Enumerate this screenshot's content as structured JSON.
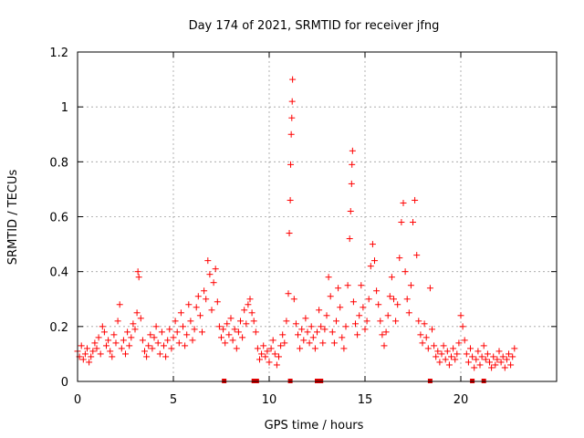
{
  "chart_data": {
    "type": "scatter",
    "title": "Day 174 of 2021, SRMTID for receiver jfng",
    "xlabel": "GPS time / hours",
    "ylabel": "SRMTID / TECUs",
    "xlim": [
      0,
      25
    ],
    "ylim": [
      0,
      1.2
    ],
    "xticks": [
      0,
      5,
      10,
      15,
      20
    ],
    "xtick_labels": [
      "0",
      "5",
      "10",
      "15",
      "20"
    ],
    "yticks": [
      0,
      0.2,
      0.4,
      0.6,
      0.8,
      1.0,
      1.2
    ],
    "ytick_labels": [
      "0",
      "0.2",
      "0.4",
      "0.6",
      "0.8",
      "1",
      "1.2"
    ],
    "grid": true,
    "marker": "+",
    "color": "#ff0000",
    "series": [
      {
        "name": "SRMTID",
        "points": [
          [
            0.0,
            0.11
          ],
          [
            0.1,
            0.09
          ],
          [
            0.2,
            0.13
          ],
          [
            0.3,
            0.08
          ],
          [
            0.4,
            0.1
          ],
          [
            0.5,
            0.12
          ],
          [
            0.6,
            0.07
          ],
          [
            0.7,
            0.09
          ],
          [
            0.8,
            0.11
          ],
          [
            0.9,
            0.14
          ],
          [
            1.0,
            0.12
          ],
          [
            1.1,
            0.16
          ],
          [
            1.2,
            0.1
          ],
          [
            1.3,
            0.2
          ],
          [
            1.4,
            0.18
          ],
          [
            1.5,
            0.13
          ],
          [
            1.6,
            0.15
          ],
          [
            1.7,
            0.11
          ],
          [
            1.8,
            0.09
          ],
          [
            1.9,
            0.17
          ],
          [
            2.0,
            0.14
          ],
          [
            2.1,
            0.22
          ],
          [
            2.2,
            0.28
          ],
          [
            2.3,
            0.12
          ],
          [
            2.4,
            0.15
          ],
          [
            2.5,
            0.1
          ],
          [
            2.6,
            0.18
          ],
          [
            2.7,
            0.13
          ],
          [
            2.8,
            0.16
          ],
          [
            2.9,
            0.21
          ],
          [
            3.0,
            0.19
          ],
          [
            3.1,
            0.25
          ],
          [
            3.15,
            0.4
          ],
          [
            3.2,
            0.38
          ],
          [
            3.3,
            0.23
          ],
          [
            3.4,
            0.15
          ],
          [
            3.5,
            0.11
          ],
          [
            3.6,
            0.09
          ],
          [
            3.7,
            0.13
          ],
          [
            3.8,
            0.17
          ],
          [
            3.9,
            0.12
          ],
          [
            4.0,
            0.16
          ],
          [
            4.1,
            0.2
          ],
          [
            4.2,
            0.14
          ],
          [
            4.3,
            0.1
          ],
          [
            4.4,
            0.18
          ],
          [
            4.5,
            0.13
          ],
          [
            4.6,
            0.09
          ],
          [
            4.7,
            0.15
          ],
          [
            4.8,
            0.19
          ],
          [
            4.9,
            0.12
          ],
          [
            5.0,
            0.16
          ],
          [
            5.1,
            0.22
          ],
          [
            5.2,
            0.18
          ],
          [
            5.3,
            0.14
          ],
          [
            5.4,
            0.25
          ],
          [
            5.5,
            0.2
          ],
          [
            5.6,
            0.13
          ],
          [
            5.7,
            0.17
          ],
          [
            5.8,
            0.28
          ],
          [
            5.9,
            0.22
          ],
          [
            6.0,
            0.15
          ],
          [
            6.1,
            0.19
          ],
          [
            6.2,
            0.27
          ],
          [
            6.3,
            0.31
          ],
          [
            6.4,
            0.24
          ],
          [
            6.5,
            0.18
          ],
          [
            6.6,
            0.33
          ],
          [
            6.7,
            0.3
          ],
          [
            6.8,
            0.44
          ],
          [
            6.9,
            0.39
          ],
          [
            7.0,
            0.26
          ],
          [
            7.1,
            0.36
          ],
          [
            7.2,
            0.41
          ],
          [
            7.3,
            0.29
          ],
          [
            7.4,
            0.2
          ],
          [
            7.5,
            0.16
          ],
          [
            7.6,
            0.19
          ],
          [
            7.7,
            0.14
          ],
          [
            7.8,
            0.21
          ],
          [
            7.9,
            0.17
          ],
          [
            8.0,
            0.23
          ],
          [
            8.1,
            0.15
          ],
          [
            8.2,
            0.19
          ],
          [
            8.3,
            0.12
          ],
          [
            8.4,
            0.18
          ],
          [
            8.5,
            0.22
          ],
          [
            8.6,
            0.16
          ],
          [
            8.7,
            0.26
          ],
          [
            8.8,
            0.21
          ],
          [
            8.9,
            0.28
          ],
          [
            9.0,
            0.3
          ],
          [
            9.1,
            0.25
          ],
          [
            9.2,
            0.22
          ],
          [
            9.3,
            0.18
          ],
          [
            9.4,
            0.12
          ],
          [
            9.5,
            0.08
          ],
          [
            9.6,
            0.1
          ],
          [
            9.7,
            0.13
          ],
          [
            9.8,
            0.09
          ],
          [
            9.9,
            0.11
          ],
          [
            10.0,
            0.07
          ],
          [
            10.1,
            0.12
          ],
          [
            10.2,
            0.15
          ],
          [
            10.3,
            0.1
          ],
          [
            10.4,
            0.06
          ],
          [
            10.5,
            0.09
          ],
          [
            10.6,
            0.13
          ],
          [
            10.7,
            0.17
          ],
          [
            10.8,
            0.14
          ],
          [
            10.9,
            0.22
          ],
          [
            11.0,
            0.32
          ],
          [
            11.05,
            0.54
          ],
          [
            11.1,
            0.66
          ],
          [
            11.12,
            0.79
          ],
          [
            11.15,
            0.9
          ],
          [
            11.18,
            0.96
          ],
          [
            11.2,
            1.02
          ],
          [
            11.22,
            1.1
          ],
          [
            11.3,
            0.3
          ],
          [
            11.4,
            0.21
          ],
          [
            11.5,
            0.17
          ],
          [
            11.6,
            0.12
          ],
          [
            11.7,
            0.19
          ],
          [
            11.8,
            0.15
          ],
          [
            11.9,
            0.23
          ],
          [
            12.0,
            0.18
          ],
          [
            12.1,
            0.14
          ],
          [
            12.2,
            0.2
          ],
          [
            12.3,
            0.16
          ],
          [
            12.4,
            0.12
          ],
          [
            12.5,
            0.18
          ],
          [
            12.6,
            0.26
          ],
          [
            12.7,
            0.2
          ],
          [
            12.8,
            0.14
          ],
          [
            12.9,
            0.19
          ],
          [
            13.0,
            0.24
          ],
          [
            13.1,
            0.38
          ],
          [
            13.2,
            0.31
          ],
          [
            13.3,
            0.18
          ],
          [
            13.4,
            0.14
          ],
          [
            13.5,
            0.22
          ],
          [
            13.6,
            0.34
          ],
          [
            13.7,
            0.27
          ],
          [
            13.8,
            0.16
          ],
          [
            13.9,
            0.12
          ],
          [
            14.0,
            0.2
          ],
          [
            14.1,
            0.35
          ],
          [
            14.2,
            0.52
          ],
          [
            14.25,
            0.62
          ],
          [
            14.3,
            0.72
          ],
          [
            14.32,
            0.79
          ],
          [
            14.35,
            0.84
          ],
          [
            14.4,
            0.29
          ],
          [
            14.5,
            0.21
          ],
          [
            14.6,
            0.17
          ],
          [
            14.7,
            0.24
          ],
          [
            14.8,
            0.35
          ],
          [
            14.9,
            0.27
          ],
          [
            15.0,
            0.19
          ],
          [
            15.1,
            0.22
          ],
          [
            15.2,
            0.3
          ],
          [
            15.3,
            0.42
          ],
          [
            15.4,
            0.5
          ],
          [
            15.5,
            0.44
          ],
          [
            15.6,
            0.33
          ],
          [
            15.7,
            0.28
          ],
          [
            15.8,
            0.22
          ],
          [
            15.9,
            0.17
          ],
          [
            16.0,
            0.13
          ],
          [
            16.1,
            0.18
          ],
          [
            16.2,
            0.24
          ],
          [
            16.3,
            0.31
          ],
          [
            16.4,
            0.38
          ],
          [
            16.5,
            0.3
          ],
          [
            16.6,
            0.22
          ],
          [
            16.7,
            0.28
          ],
          [
            16.8,
            0.45
          ],
          [
            16.9,
            0.58
          ],
          [
            17.0,
            0.65
          ],
          [
            17.1,
            0.4
          ],
          [
            17.2,
            0.3
          ],
          [
            17.3,
            0.25
          ],
          [
            17.4,
            0.35
          ],
          [
            17.5,
            0.58
          ],
          [
            17.6,
            0.66
          ],
          [
            17.7,
            0.46
          ],
          [
            17.8,
            0.22
          ],
          [
            17.9,
            0.17
          ],
          [
            18.0,
            0.14
          ],
          [
            18.1,
            0.21
          ],
          [
            18.2,
            0.16
          ],
          [
            18.3,
            0.12
          ],
          [
            18.4,
            0.34
          ],
          [
            18.5,
            0.19
          ],
          [
            18.6,
            0.13
          ],
          [
            18.7,
            0.09
          ],
          [
            18.8,
            0.11
          ],
          [
            18.9,
            0.07
          ],
          [
            19.0,
            0.1
          ],
          [
            19.1,
            0.13
          ],
          [
            19.2,
            0.08
          ],
          [
            19.3,
            0.11
          ],
          [
            19.4,
            0.06
          ],
          [
            19.5,
            0.09
          ],
          [
            19.6,
            0.12
          ],
          [
            19.7,
            0.08
          ],
          [
            19.8,
            0.1
          ],
          [
            19.9,
            0.14
          ],
          [
            20.0,
            0.24
          ],
          [
            20.1,
            0.2
          ],
          [
            20.2,
            0.15
          ],
          [
            20.3,
            0.1
          ],
          [
            20.4,
            0.07
          ],
          [
            20.5,
            0.12
          ],
          [
            20.6,
            0.09
          ],
          [
            20.7,
            0.05
          ],
          [
            20.8,
            0.08
          ],
          [
            20.9,
            0.11
          ],
          [
            21.0,
            0.06
          ],
          [
            21.1,
            0.09
          ],
          [
            21.2,
            0.13
          ],
          [
            21.3,
            0.08
          ],
          [
            21.4,
            0.1
          ],
          [
            21.5,
            0.07
          ],
          [
            21.6,
            0.05
          ],
          [
            21.7,
            0.09
          ],
          [
            21.8,
            0.06
          ],
          [
            21.9,
            0.08
          ],
          [
            22.0,
            0.11
          ],
          [
            22.1,
            0.07
          ],
          [
            22.2,
            0.09
          ],
          [
            22.3,
            0.05
          ],
          [
            22.4,
            0.08
          ],
          [
            22.5,
            0.1
          ],
          [
            22.6,
            0.06
          ],
          [
            22.7,
            0.09
          ],
          [
            22.8,
            0.12
          ]
        ]
      }
    ],
    "flags": [
      7.65,
      9.2,
      9.35,
      11.1,
      12.5,
      12.7,
      18.4,
      20.6,
      21.2
    ]
  }
}
